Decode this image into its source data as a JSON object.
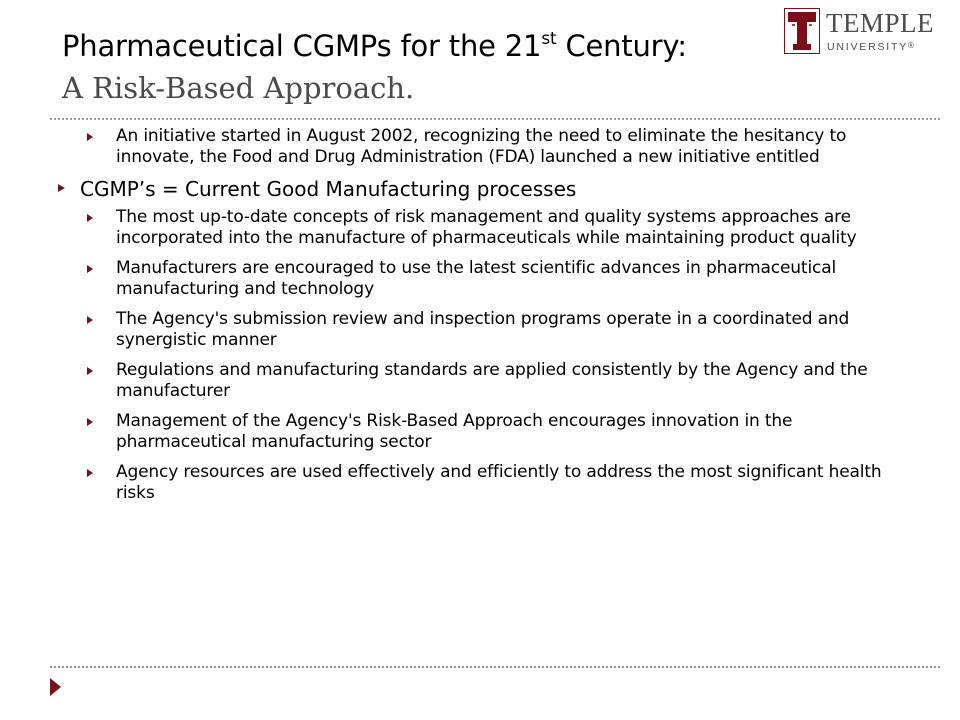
{
  "title": {
    "line1_main": "Pharmaceutical CGMPs for the 21",
    "line1_sup": "st",
    "line1_end": " Century:",
    "line2": "A Risk-Based Approach."
  },
  "logo": {
    "word1": "TEMPLE",
    "word2": "UNIVERSITY",
    "registered": "®"
  },
  "bullets": [
    {
      "level": 2,
      "text": "An initiative started in August 2002, recognizing the need to eliminate the hesitancy to innovate, the Food and Drug Administration (FDA) launched a new initiative entitled"
    },
    {
      "level": 1,
      "text": "CGMP’s = Current Good Manufacturing processes"
    },
    {
      "level": 2,
      "text": "The most up-to-date concepts of risk management and quality systems approaches are incorporated into the manufacture of pharmaceuticals while maintaining product quality"
    },
    {
      "level": 2,
      "text": "Manufacturers are encouraged to use the latest scientific advances in pharmaceutical manufacturing and technology"
    },
    {
      "level": 2,
      "text": "The Agency's submission review and inspection programs operate in a coordinated and synergistic manner"
    },
    {
      "level": 2,
      "text": "Regulations and manufacturing standards are applied consistently by the Agency and the manufacturer"
    },
    {
      "level": 2,
      "text": "Management of the Agency's Risk-Based Approach encourages innovation in the pharmaceutical manufacturing sector"
    },
    {
      "level": 2,
      "text": "Agency resources are used effectively and efficiently to address the most significant health risks"
    }
  ],
  "colors": {
    "accent": "#7a0f1a",
    "subtitle": "#4a4a4a",
    "logo_text": "#4d4d4d"
  }
}
